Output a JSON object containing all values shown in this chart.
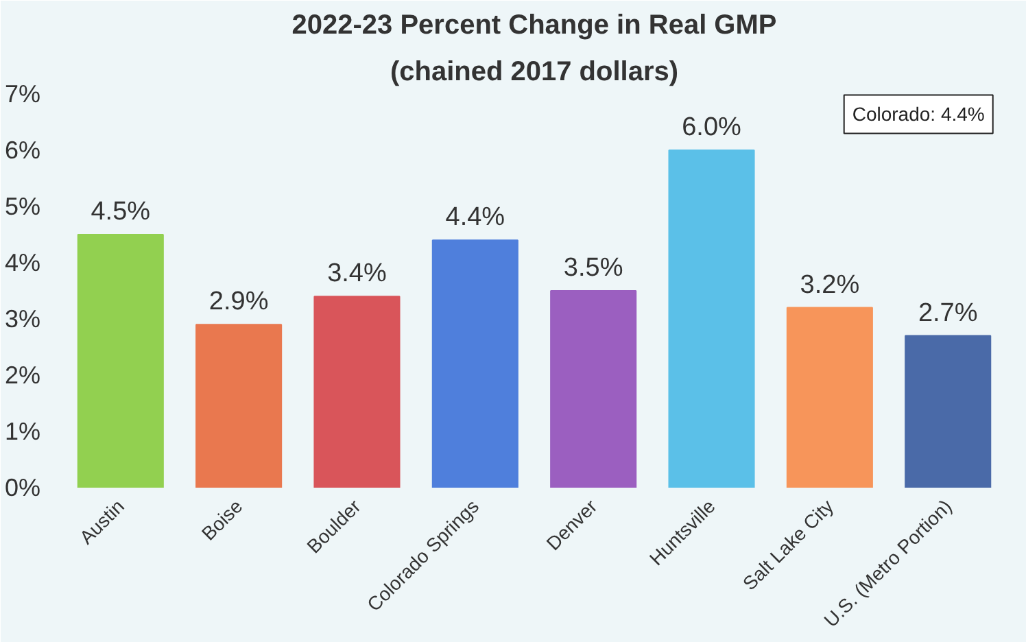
{
  "chart_data": {
    "type": "bar",
    "title": "2022-23 Percent Change in Real GMP",
    "subtitle": "(chained 2017 dollars)",
    "categories": [
      "Austin",
      "Boise",
      "Boulder",
      "Colorado Springs",
      "Denver",
      "Huntsville",
      "Salt Lake City",
      "U.S. (Metro Portion)"
    ],
    "values": [
      4.5,
      2.9,
      3.4,
      4.4,
      3.5,
      6.0,
      3.2,
      2.7
    ],
    "colors": [
      "#92d050",
      "#e9784f",
      "#d9555a",
      "#4f7fdc",
      "#9b5fc0",
      "#5bc0e8",
      "#f7955a",
      "#4a6aa8"
    ],
    "value_labels": [
      "4.5%",
      "2.9%",
      "3.4%",
      "4.4%",
      "3.5%",
      "6.0%",
      "3.2%",
      "2.7%"
    ],
    "ylim": [
      0,
      7
    ],
    "yticks": [
      {
        "value": 0,
        "label": "0%"
      },
      {
        "value": 1,
        "label": "1%"
      },
      {
        "value": 2,
        "label": "2%"
      },
      {
        "value": 3,
        "label": "3%"
      },
      {
        "value": 4,
        "label": "4%"
      },
      {
        "value": 5,
        "label": "5%"
      },
      {
        "value": 6,
        "label": "6%"
      },
      {
        "value": 7,
        "label": "7%"
      }
    ],
    "annotations": [
      "Colorado: 4.4%"
    ],
    "grid": false
  }
}
